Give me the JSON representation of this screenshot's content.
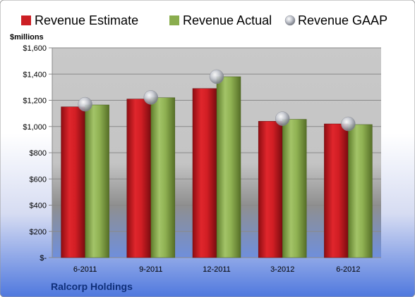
{
  "chart_data": {
    "type": "bar",
    "categories": [
      "6-2011",
      "9-2011",
      "12-2011",
      "3-2012",
      "6-2012"
    ],
    "series": [
      {
        "name": "Revenue Estimate",
        "values": [
          1150,
          1210,
          1290,
          1040,
          1020
        ],
        "color": "#cc1f24"
      },
      {
        "name": "Revenue Actual",
        "values": [
          1165,
          1220,
          1380,
          1055,
          1015
        ],
        "color": "#8aad4e"
      },
      {
        "name": "Revenue GAAP",
        "values": [
          1170,
          1222,
          1380,
          1060,
          1020
        ],
        "color": "#b8bcc6",
        "marker": "sphere"
      }
    ],
    "ylabel": "$millions",
    "ylim": [
      0,
      1600
    ],
    "yticks": [
      0,
      200,
      400,
      600,
      800,
      1000,
      1200,
      1400,
      1600
    ],
    "ytick_labels": [
      "$-",
      "$200",
      "$400",
      "$600",
      "$800",
      "$1,000",
      "$1,200",
      "$1,400",
      "$1,600"
    ],
    "grid": true,
    "legend_position": "top"
  },
  "footer": {
    "company": "Ralcorp Holdings"
  }
}
